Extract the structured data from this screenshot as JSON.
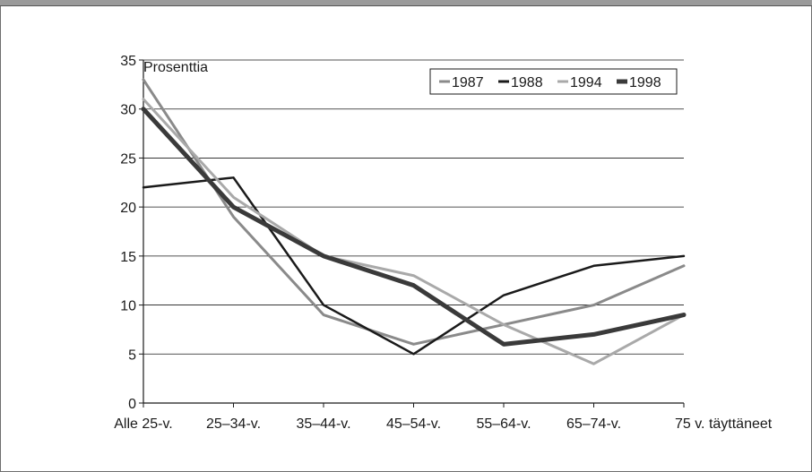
{
  "chart_data": {
    "type": "line",
    "ylabel": "Prosenttia",
    "ylim": [
      0,
      35
    ],
    "yticks": [
      0,
      5,
      10,
      15,
      20,
      25,
      30,
      35
    ],
    "categories": [
      "Alle 25-v.",
      "25–34-v.",
      "35–44-v.",
      "45–54-v.",
      "55–64-v.",
      "65–74-v.",
      "75 v. täyttäneet"
    ],
    "grid": "horizontal",
    "legend_position": "top-right",
    "series": [
      {
        "name": "1987",
        "values": [
          33,
          19,
          9,
          6,
          8,
          10,
          14
        ],
        "color": "#8a8a8a",
        "width": 3
      },
      {
        "name": "1988",
        "values": [
          22,
          23,
          10,
          5,
          11,
          14,
          15
        ],
        "color": "#1a1a1a",
        "width": 2.5
      },
      {
        "name": "1994",
        "values": [
          31,
          21,
          15,
          13,
          8,
          4,
          9
        ],
        "color": "#a9a9a9",
        "width": 3
      },
      {
        "name": "1998",
        "values": [
          30,
          20,
          15,
          12,
          6,
          7,
          9
        ],
        "color": "#3a3a3a",
        "width": 5
      }
    ]
  }
}
